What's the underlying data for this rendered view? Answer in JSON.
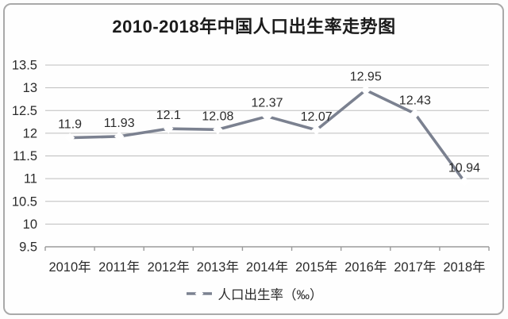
{
  "chart_data": {
    "type": "line",
    "title": "2010-2018年中国人口出生率走势图",
    "categories": [
      "2010年",
      "2011年",
      "2012年",
      "2013年",
      "2014年",
      "2015年",
      "2016年",
      "2017年",
      "2018年"
    ],
    "series": [
      {
        "name": "人口出生率（‰）",
        "values": [
          11.9,
          11.93,
          12.1,
          12.08,
          12.37,
          12.07,
          12.95,
          12.43,
          10.94
        ]
      }
    ],
    "ylim": [
      9.5,
      13.5
    ],
    "y_ticks": [
      13.5,
      13,
      12.5,
      12,
      11.5,
      11,
      10.5,
      10,
      9.5
    ],
    "xlabel": "",
    "ylabel": "",
    "grid": true,
    "legend_position": "bottom",
    "marker": "diamond",
    "colors": {
      "line": "#7b8190",
      "marker_fill": "#ffffff",
      "marker_stroke": "#83899​6",
      "gridline": "#bdbdbd",
      "axis": "#9b9b9b",
      "text": "#2b2b2b",
      "title": "#1b1b1b",
      "card_border": "#a9a9a9",
      "background": "#fefefe"
    }
  }
}
